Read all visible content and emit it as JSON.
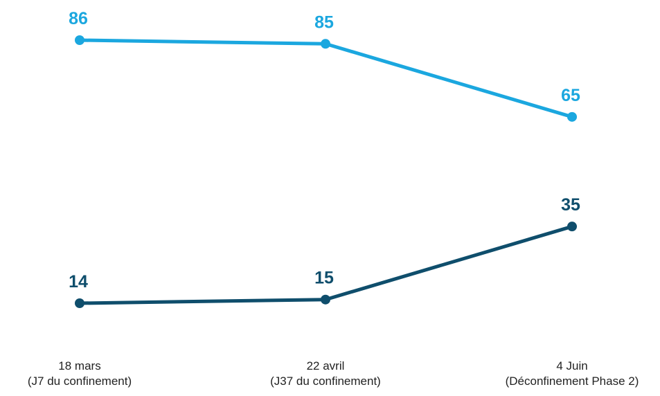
{
  "chart_data": {
    "type": "line",
    "categories": [
      [
        "18 mars",
        "(J7 du confinement)"
      ],
      [
        "22 avril",
        "(J37 du confinement)"
      ],
      [
        "4 Juin",
        "(Déconfinement Phase 2)"
      ]
    ],
    "series": [
      {
        "values": [
          86,
          85,
          65
        ],
        "color": "#1ba7df"
      },
      {
        "values": [
          14,
          15,
          35
        ],
        "color": "#0f4e6c"
      }
    ],
    "ylim": [
      0,
      100
    ],
    "grid": false,
    "legend": "none",
    "show_data_labels": true
  }
}
